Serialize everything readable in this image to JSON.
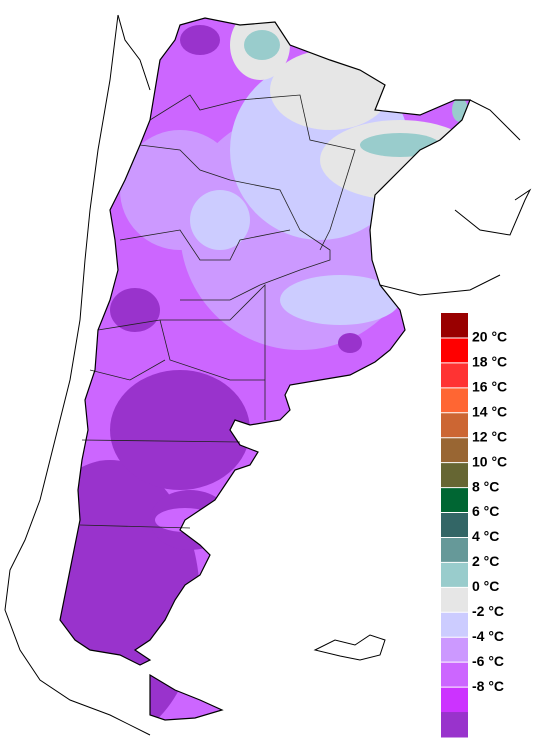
{
  "legend": {
    "labels": [
      "20 °C",
      "18 °C",
      "16 °C",
      "14 °C",
      "12 °C",
      "10 °C",
      "8 °C",
      "6 °C",
      "4 °C",
      "2 °C",
      "0 °C",
      "-2 °C",
      "-4 °C",
      "-6 °C",
      "-8 °C"
    ],
    "colors": [
      "#990000",
      "#ff0000",
      "#ff3333",
      "#ff6633",
      "#cc6633",
      "#996633",
      "#666633",
      "#006633",
      "#336666",
      "#669999",
      "#99cccc",
      "#e6e6e6",
      "#ccccff",
      "#cc99ff",
      "#cc66ff",
      "#cc33ff",
      "#9933cc"
    ]
  }
}
